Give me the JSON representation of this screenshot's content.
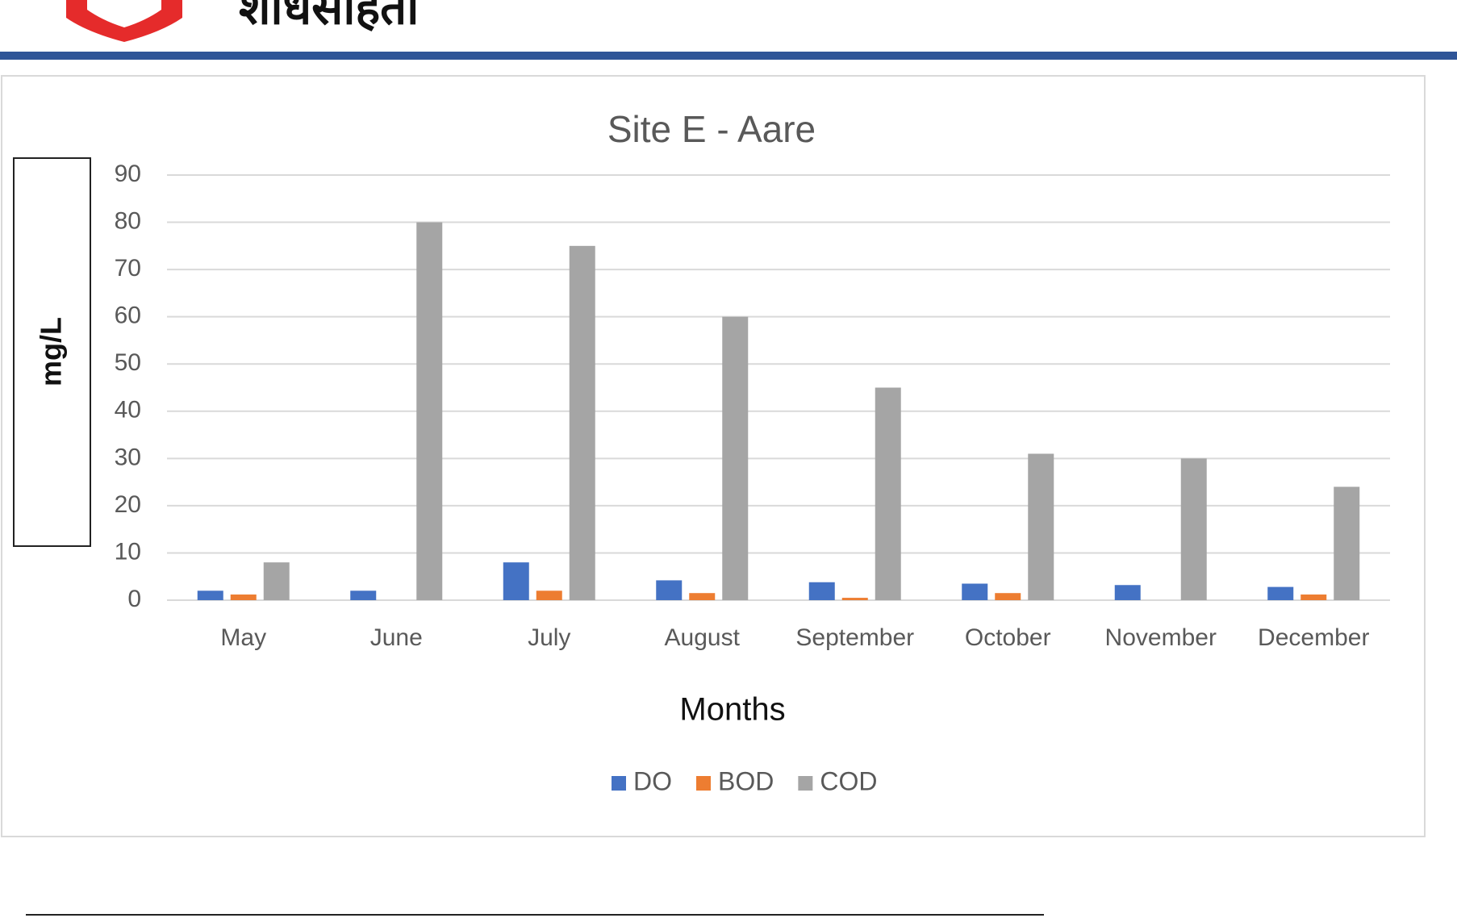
{
  "header": {
    "title": "शोधसंहिता"
  },
  "chart_data": {
    "type": "bar",
    "title": "Site E - Aare",
    "x_label": "Months",
    "y_label": "mg/L",
    "categories": [
      "May",
      "June",
      "July",
      "August",
      "September",
      "October",
      "November",
      "December"
    ],
    "series": [
      {
        "name": "DO",
        "color": "#4472c4",
        "values": [
          2,
          2,
          8,
          4.2,
          3.8,
          3.5,
          3.2,
          2.8
        ]
      },
      {
        "name": "BOD",
        "color": "#ed7d31",
        "values": [
          1.2,
          0,
          2,
          1.5,
          0.5,
          1.5,
          0,
          1.2
        ]
      },
      {
        "name": "COD",
        "color": "#a5a5a5",
        "values": [
          8,
          80,
          75,
          60,
          45,
          31,
          30,
          24
        ]
      }
    ],
    "ylim": [
      0,
      90
    ],
    "yticks": [
      0,
      10,
      20,
      30,
      40,
      50,
      60,
      70,
      80,
      90
    ],
    "grid": true,
    "legend": "bottom"
  }
}
